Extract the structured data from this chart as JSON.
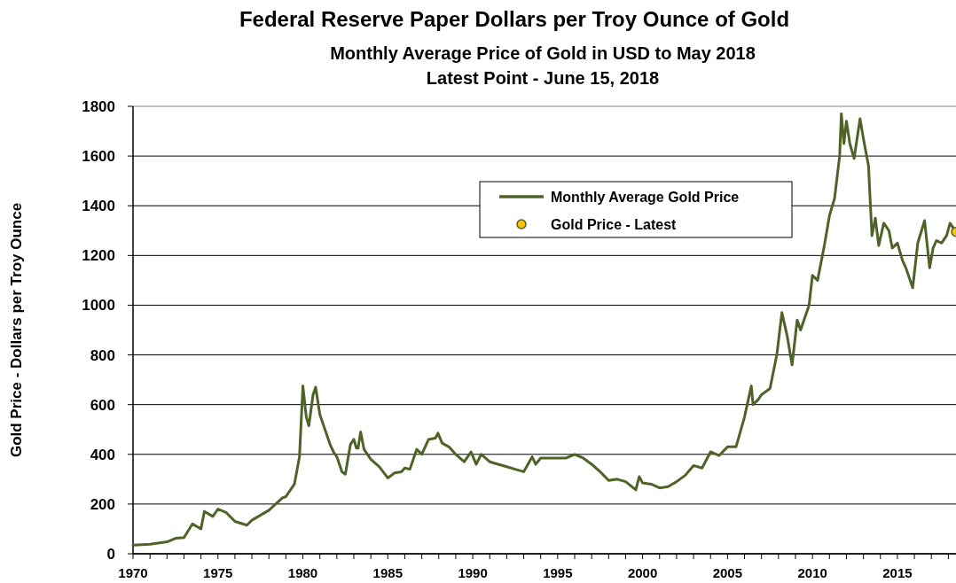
{
  "chart_data": {
    "type": "line",
    "title": "Federal Reserve Paper Dollars per Troy Ounce of Gold",
    "subtitle": "Monthly Average Price of Gold in USD to May 2018\nLatest Point - June 15, 2018",
    "ylabel": "Gold Price - Dollars per Troy Ounce",
    "xlim": [
      1970,
      2018.45
    ],
    "ylim": [
      0,
      1800
    ],
    "xticks": [
      1970,
      {
        "value": 1971,
        "label": null
      },
      {
        "value": 1972,
        "label": null
      },
      {
        "value": 1973,
        "label": null
      },
      {
        "value": 1974,
        "label": null
      },
      1975,
      {
        "value": 1976,
        "label": null
      },
      {
        "value": 1977,
        "label": null
      },
      {
        "value": 1978,
        "label": null
      },
      {
        "value": 1979,
        "label": null
      },
      1980,
      {
        "value": 1981,
        "label": null
      },
      {
        "value": 1982,
        "label": null
      },
      {
        "value": 1983,
        "label": null
      },
      {
        "value": 1984,
        "label": null
      },
      1985,
      {
        "value": 1986,
        "label": null
      },
      {
        "value": 1987,
        "label": null
      },
      {
        "value": 1988,
        "label": null
      },
      {
        "value": 1989,
        "label": null
      },
      1990,
      {
        "value": 1991,
        "label": null
      },
      {
        "value": 1992,
        "label": null
      },
      {
        "value": 1993,
        "label": null
      },
      {
        "value": 1994,
        "label": null
      },
      1995,
      {
        "value": 1996,
        "label": null
      },
      {
        "value": 1997,
        "label": null
      },
      {
        "value": 1998,
        "label": null
      },
      {
        "value": 1999,
        "label": null
      },
      2000,
      {
        "value": 2001,
        "label": null
      },
      {
        "value": 2002,
        "label": null
      },
      {
        "value": 2003,
        "label": null
      },
      {
        "value": 2004,
        "label": null
      },
      2005,
      {
        "value": 2006,
        "label": null
      },
      {
        "value": 2007,
        "label": null
      },
      {
        "value": 2008,
        "label": null
      },
      {
        "value": 2009,
        "label": null
      },
      2010,
      {
        "value": 2011,
        "label": null
      },
      {
        "value": 2012,
        "label": null
      },
      {
        "value": 2013,
        "label": null
      },
      {
        "value": 2014,
        "label": null
      },
      2015,
      {
        "value": 2016,
        "label": null
      },
      {
        "value": 2017,
        "label": null
      },
      {
        "value": 2018,
        "label": null
      }
    ],
    "yticks": [
      0,
      200,
      400,
      600,
      800,
      1000,
      1200,
      1400,
      1600,
      1800
    ],
    "grid": "y",
    "legend": "top right",
    "series": [
      {
        "name": "Monthly Average Gold Price",
        "color": "#4f6228",
        "marker": "none",
        "x": [
          1970,
          1971,
          1972,
          1972.5,
          1973,
          1973.5,
          1974,
          1974.2,
          1974.7,
          1975,
          1975.5,
          1976,
          1976.7,
          1977,
          1978,
          1978.8,
          1979,
          1979.5,
          1979.8,
          1980,
          1980.2,
          1980.35,
          1980.6,
          1980.75,
          1981,
          1981.3,
          1981.6,
          1981.8,
          1982,
          1982.3,
          1982.5,
          1982.8,
          1983,
          1983.15,
          1983.25,
          1983.4,
          1983.6,
          1984,
          1984.5,
          1985,
          1985.4,
          1985.8,
          1986,
          1986.3,
          1986.7,
          1987,
          1987.4,
          1987.8,
          1987.95,
          1988.2,
          1988.6,
          1989,
          1989.5,
          1989.9,
          1990.2,
          1990.5,
          1991,
          1991.5,
          1992,
          1992.5,
          1993,
          1993.5,
          1993.7,
          1994,
          1994.5,
          1995,
          1995.5,
          1996,
          1996.5,
          1997,
          1997.5,
          1998,
          1998.5,
          1999,
          1999.6,
          1999.8,
          2000,
          2000.5,
          2001,
          2001.5,
          2002,
          2002.5,
          2003,
          2003.5,
          2004,
          2004.5,
          2005,
          2005.5,
          2006,
          2006.4,
          2006.5,
          2006.8,
          2007,
          2007.5,
          2007.9,
          2008.2,
          2008.5,
          2008.8,
          2009.1,
          2009.3,
          2009.8,
          2010,
          2010.3,
          2010.7,
          2011,
          2011.3,
          2011.6,
          2011.7,
          2011.85,
          2012,
          2012.2,
          2012.45,
          2012.8,
          2013,
          2013.3,
          2013.5,
          2013.7,
          2013.9,
          2014.2,
          2014.5,
          2014.7,
          2015,
          2015.3,
          2015.5,
          2015.9,
          2016.2,
          2016.6,
          2016.9,
          2017.1,
          2017.3,
          2017.6,
          2017.9,
          2018.1,
          2018.4
        ],
        "values": [
          35,
          38,
          48,
          62,
          65,
          120,
          100,
          170,
          150,
          180,
          165,
          130,
          115,
          135,
          175,
          225,
          230,
          280,
          390,
          675,
          550,
          515,
          640,
          670,
          560,
          500,
          440,
          410,
          390,
          330,
          320,
          440,
          460,
          425,
          425,
          490,
          420,
          380,
          350,
          305,
          325,
          330,
          345,
          340,
          420,
          400,
          460,
          465,
          485,
          445,
          430,
          400,
          370,
          410,
          360,
          400,
          370,
          360,
          350,
          340,
          330,
          390,
          360,
          385,
          385,
          385,
          385,
          400,
          385,
          360,
          330,
          295,
          300,
          290,
          257,
          310,
          285,
          280,
          265,
          270,
          290,
          315,
          355,
          345,
          410,
          395,
          430,
          430,
          550,
          675,
          600,
          620,
          640,
          665,
          800,
          970,
          880,
          760,
          940,
          900,
          1000,
          1120,
          1100,
          1240,
          1360,
          1430,
          1600,
          1770,
          1650,
          1740,
          1650,
          1590,
          1750,
          1670,
          1560,
          1280,
          1350,
          1240,
          1330,
          1300,
          1230,
          1250,
          1180,
          1150,
          1070,
          1250,
          1340,
          1150,
          1230,
          1260,
          1250,
          1280,
          1330,
          1300
        ]
      },
      {
        "name": "Gold Price - Latest",
        "type": "scatter",
        "color": "#ffc000",
        "marker": "circle",
        "x": [
          2018.45
        ],
        "values": [
          1295
        ]
      }
    ]
  }
}
